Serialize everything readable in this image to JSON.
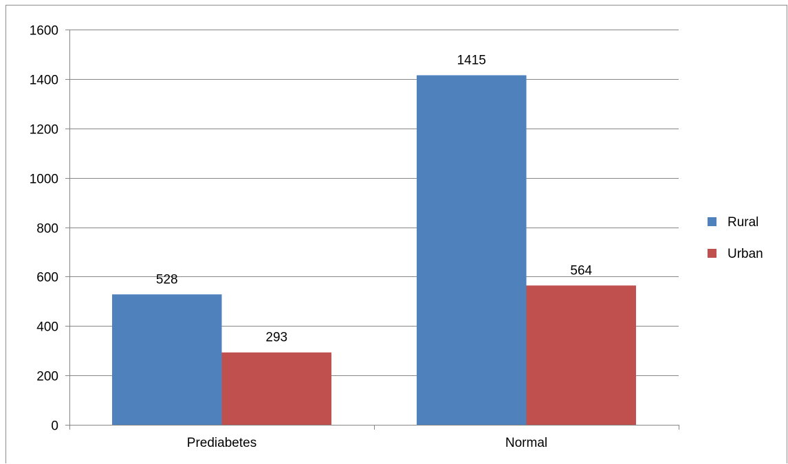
{
  "chart_data": {
    "type": "bar",
    "categories": [
      "Prediabetes",
      "Normal"
    ],
    "series": [
      {
        "name": "Rural",
        "color": "#4f81bd",
        "values": [
          528,
          1415
        ]
      },
      {
        "name": "Urban",
        "color": "#c0504d",
        "values": [
          293,
          564
        ]
      }
    ],
    "ylim": [
      0,
      1600
    ],
    "yticks": [
      0,
      200,
      400,
      600,
      800,
      1000,
      1200,
      1400,
      1600
    ],
    "grid": true,
    "legend_position": "right",
    "data_labels": true,
    "gridline_color": "#868686"
  }
}
